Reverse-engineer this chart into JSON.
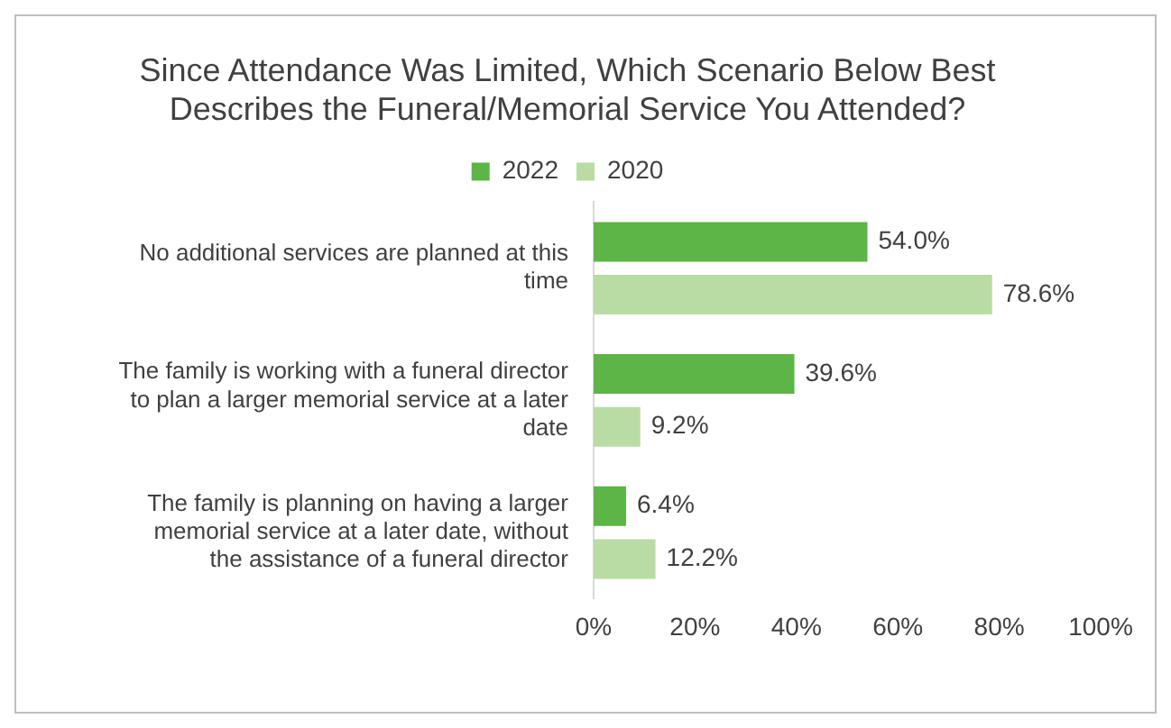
{
  "chart_data": {
    "type": "bar",
    "orientation": "horizontal",
    "title": "Since Attendance Was Limited, Which Scenario Below Best Describes the Funeral/Memorial Service You Attended?",
    "categories": [
      "No additional services are planned at this time",
      "The family is working with a funeral director to plan a larger memorial service at a later date",
      "The family is planning on having a larger memorial service at a later date, without the assistance of a funeral director"
    ],
    "series": [
      {
        "name": "2022",
        "color": "#5cb546",
        "values": [
          54.0,
          39.6,
          6.4
        ],
        "value_labels": [
          "54.0%",
          "39.6%",
          "6.4%"
        ]
      },
      {
        "name": "2020",
        "color": "#b9dca4",
        "values": [
          78.6,
          9.2,
          12.2
        ],
        "value_labels": [
          "78.6%",
          "9.2%",
          "12.2%"
        ]
      }
    ],
    "xlim": [
      0,
      100
    ],
    "xticks": [
      {
        "value": 0,
        "label": "0%"
      },
      {
        "value": 20,
        "label": "20%"
      },
      {
        "value": 40,
        "label": "40%"
      },
      {
        "value": 60,
        "label": "60%"
      },
      {
        "value": 80,
        "label": "80%"
      },
      {
        "value": 100,
        "label": "100%"
      }
    ],
    "grid": false,
    "legend": "top"
  }
}
